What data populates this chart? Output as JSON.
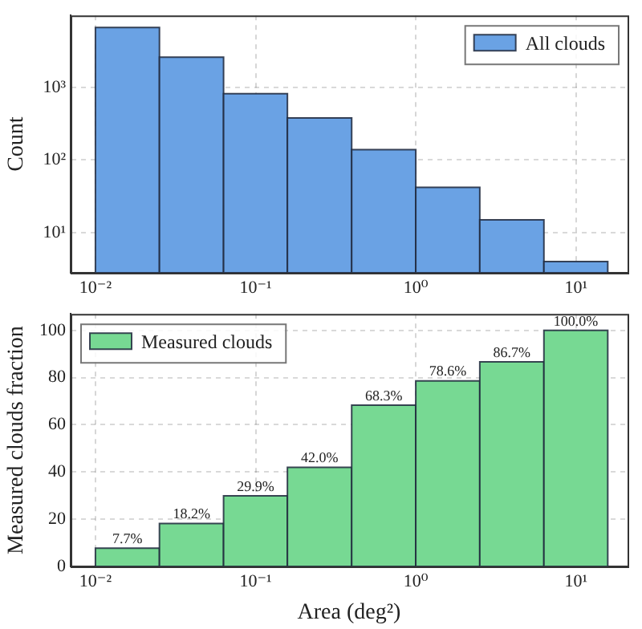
{
  "chart_data": [
    {
      "type": "histogram",
      "ylabel": "Count",
      "log": "xy",
      "grid": true,
      "legend": "top right",
      "bins": [
        0.01,
        0.0251,
        0.0631,
        0.158,
        0.398,
        1,
        2.51,
        6.31,
        15.8
      ],
      "series": [
        {
          "name": "All clouds",
          "color": "#6aa2e4",
          "values": [
            6700,
            2600,
            820,
            380,
            139,
            42,
            15,
            4
          ]
        }
      ],
      "xlim": [
        0.007,
        21
      ],
      "xticks": [
        {
          "value": 0.01,
          "label": "10⁻²"
        },
        {
          "value": 0.1,
          "label": "10⁻¹"
        },
        {
          "value": 1,
          "label": "10⁰"
        },
        {
          "value": 10,
          "label": "10¹"
        }
      ],
      "ylim": [
        2.8,
        9800
      ],
      "yticks": [
        {
          "value": 10,
          "label": "10¹"
        },
        {
          "value": 100,
          "label": "10²"
        },
        {
          "value": 1000,
          "label": "10³"
        }
      ]
    },
    {
      "type": "histogram",
      "xlabel": "Area (deg²)",
      "ylabel": "Measured clouds fraction",
      "log": "x",
      "grid": true,
      "legend": "top left",
      "bins": [
        0.01,
        0.0251,
        0.0631,
        0.158,
        0.398,
        1,
        2.51,
        6.31,
        15.8
      ],
      "series": [
        {
          "name": "Measured clouds",
          "color": "#77d993",
          "values": [
            7.7,
            18.2,
            29.9,
            42.0,
            68.3,
            78.6,
            86.7,
            100.0
          ],
          "value_labels": [
            "7.7%",
            "18.2%",
            "29.9%",
            "42.0%",
            "68.3%",
            "78.6%",
            "86.7%",
            "100.0%"
          ]
        }
      ],
      "xlim": [
        0.007,
        21
      ],
      "xticks": [
        {
          "value": 0.01,
          "label": "10⁻²"
        },
        {
          "value": 0.1,
          "label": "10⁻¹"
        },
        {
          "value": 1,
          "label": "10⁰"
        },
        {
          "value": 10,
          "label": "10¹"
        }
      ],
      "ylim": [
        0,
        107
      ],
      "yticks": [
        0,
        20,
        40,
        60,
        80,
        100
      ]
    }
  ]
}
